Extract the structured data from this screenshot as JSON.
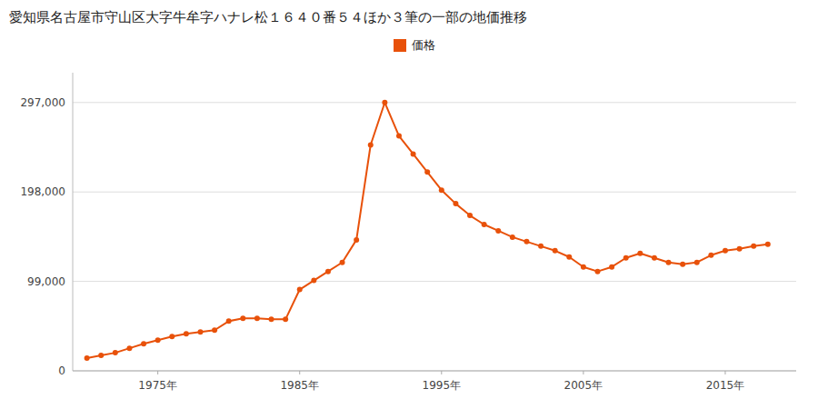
{
  "chart_data": {
    "type": "line",
    "title": "愛知県名古屋市守山区大字牛牟字ハナレ松１６４０番５４ほか３筆の一部の地価推移",
    "x": [
      1970,
      1971,
      1972,
      1973,
      1974,
      1975,
      1976,
      1977,
      1978,
      1979,
      1980,
      1981,
      1982,
      1983,
      1984,
      1985,
      1986,
      1987,
      1988,
      1989,
      1990,
      1991,
      1992,
      1993,
      1994,
      1995,
      1996,
      1997,
      1998,
      1999,
      2000,
      2001,
      2002,
      2003,
      2004,
      2005,
      2006,
      2007,
      2008,
      2009,
      2010,
      2011,
      2012,
      2013,
      2014,
      2015,
      2016,
      2017,
      2018
    ],
    "series": [
      {
        "name": "価格",
        "color": "#E8510A",
        "marker": "circle",
        "line_style": "solid",
        "values": [
          14000,
          17000,
          20000,
          25000,
          30000,
          34000,
          38000,
          41000,
          43000,
          45000,
          55000,
          58000,
          58000,
          57000,
          57000,
          90000,
          100000,
          110000,
          120000,
          145000,
          250000,
          297000,
          260000,
          240000,
          220000,
          200000,
          185000,
          172000,
          162000,
          155000,
          148000,
          143000,
          138000,
          133000,
          126000,
          115000,
          110000,
          115000,
          125000,
          130000,
          125000,
          120000,
          118000,
          120000,
          128000,
          133000,
          135000,
          138000,
          140000
        ]
      }
    ],
    "xlim": [
      1969,
      2020
    ],
    "xticks": [
      {
        "value": 1975,
        "label": "1975年"
      },
      {
        "value": 1985,
        "label": "1985年"
      },
      {
        "value": 1995,
        "label": "1995年"
      },
      {
        "value": 2005,
        "label": "2005年"
      },
      {
        "value": 2015,
        "label": "2015年"
      }
    ],
    "ylim": [
      0,
      330000
    ],
    "yticks": [
      0,
      {
        "value": 99000,
        "label": "99,000"
      },
      {
        "value": 198000,
        "label": "198,000"
      },
      {
        "value": 297000,
        "label": "297,000"
      }
    ],
    "grid": true,
    "legend": "top"
  }
}
